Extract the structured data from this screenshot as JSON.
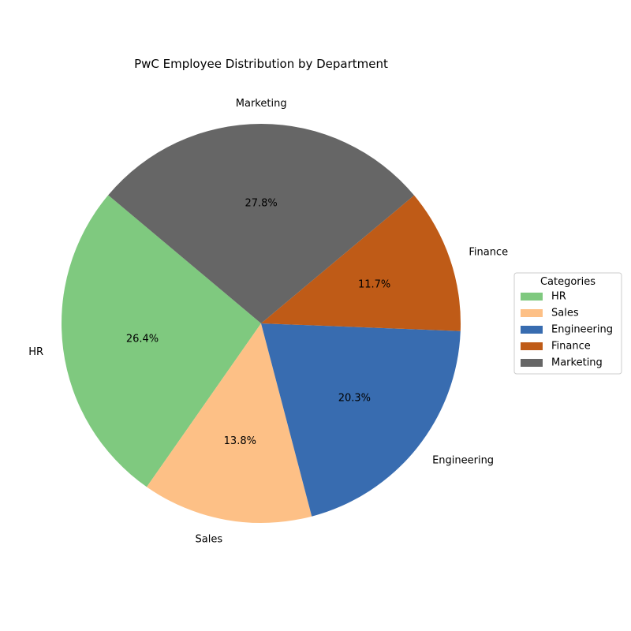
{
  "chart_data": {
    "type": "pie",
    "title": "PwC Employee Distribution by Department",
    "categories": [
      "HR",
      "Sales",
      "Engineering",
      "Finance",
      "Marketing"
    ],
    "values": [
      26.4,
      13.8,
      20.3,
      11.7,
      27.8
    ],
    "percent_labels": [
      "26.4%",
      "13.8%",
      "20.3%",
      "11.7%",
      "27.8%"
    ],
    "colors": [
      "#7fc97f",
      "#fdc086",
      "#386cb0",
      "#bf5b17",
      "#666666"
    ],
    "start_angle_deg": 140,
    "direction": "counterclockwise",
    "legend": {
      "title": "Categories",
      "placement": "center-right",
      "entries": [
        "HR",
        "Sales",
        "Engineering",
        "Finance",
        "Marketing"
      ]
    }
  }
}
